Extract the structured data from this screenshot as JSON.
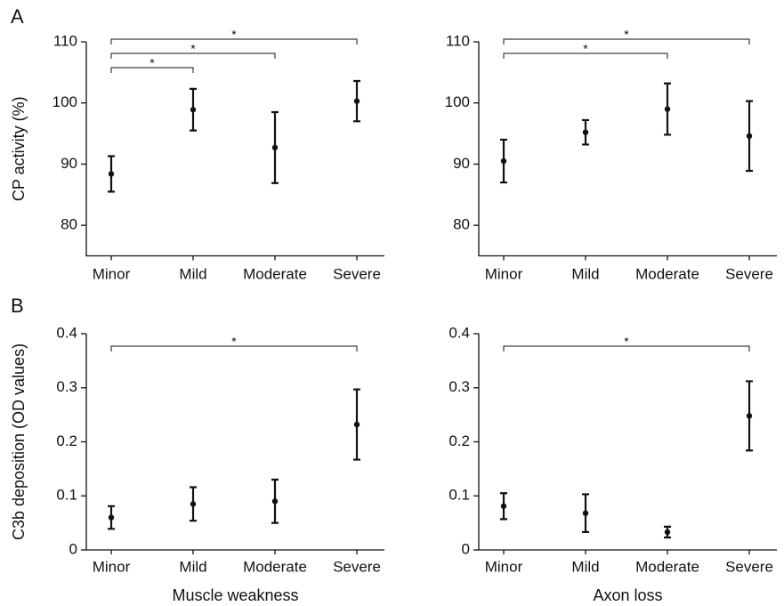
{
  "chart_data": [
    {
      "type": "errorbar",
      "panel_label": "A",
      "ylabel": "CP activity (%)",
      "categories": [
        "Minor",
        "Mild",
        "Moderate",
        "Severe"
      ],
      "values": [
        88.4,
        98.9,
        92.7,
        100.3
      ],
      "errors": [
        2.9,
        3.4,
        5.8,
        3.3
      ],
      "color": "#111111",
      "ylim": [
        75,
        110
      ],
      "yticks": [
        80,
        90,
        100,
        110
      ],
      "brackets": [
        {
          "start": 0,
          "end": 3,
          "label": "*"
        },
        {
          "start": 0,
          "end": 2,
          "label": "*"
        },
        {
          "start": 0,
          "end": 1,
          "label": "*"
        }
      ]
    },
    {
      "type": "errorbar",
      "categories": [
        "Minor",
        "Mild",
        "Moderate",
        "Severe"
      ],
      "values": [
        90.5,
        95.2,
        99.0,
        94.6
      ],
      "errors": [
        3.5,
        2.0,
        4.2,
        5.7
      ],
      "color": "#111111",
      "ylim": [
        75,
        110
      ],
      "yticks": [
        80,
        90,
        100,
        110
      ],
      "brackets": [
        {
          "start": 0,
          "end": 3,
          "label": "*"
        },
        {
          "start": 0,
          "end": 2,
          "label": "*"
        }
      ]
    },
    {
      "type": "errorbar",
      "panel_label": "B",
      "ylabel": "C3b deposition (OD values)",
      "xlabel": "Muscle weakness",
      "categories": [
        "Minor",
        "Mild",
        "Moderate",
        "Severe"
      ],
      "values": [
        0.06,
        0.085,
        0.09,
        0.232
      ],
      "errors": [
        0.021,
        0.031,
        0.04,
        0.065
      ],
      "color": "#111111",
      "ylim": [
        0,
        0.4
      ],
      "yticks": [
        0,
        0.1,
        0.2,
        0.3,
        0.4
      ],
      "brackets": [
        {
          "start": 0,
          "end": 3,
          "label": "*"
        }
      ]
    },
    {
      "type": "errorbar",
      "xlabel": "Axon loss",
      "categories": [
        "Minor",
        "Mild",
        "Moderate",
        "Severe"
      ],
      "values": [
        0.081,
        0.068,
        0.033,
        0.248
      ],
      "errors": [
        0.024,
        0.035,
        0.01,
        0.064
      ],
      "color": "#111111",
      "ylim": [
        0,
        0.4
      ],
      "yticks": [
        0,
        0.1,
        0.2,
        0.3,
        0.4
      ],
      "brackets": [
        {
          "start": 0,
          "end": 3,
          "label": "*"
        }
      ]
    }
  ]
}
